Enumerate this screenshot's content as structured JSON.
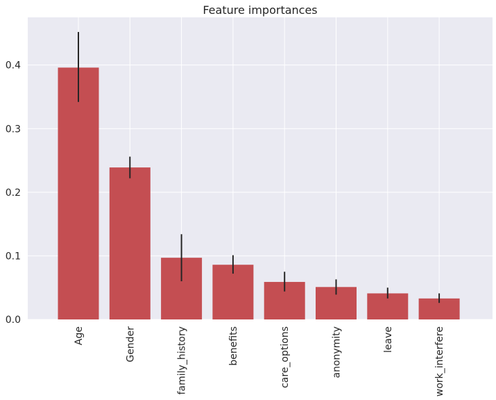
{
  "chart_data": {
    "type": "bar",
    "title": "Feature importances",
    "xlabel": "",
    "ylabel": "",
    "categories": [
      "Age",
      "Gender",
      "family_history",
      "benefits",
      "care_options",
      "anonymity",
      "leave",
      "work_interfere"
    ],
    "values": [
      0.396,
      0.239,
      0.097,
      0.086,
      0.059,
      0.051,
      0.041,
      0.033
    ],
    "errors_low": [
      0.342,
      0.222,
      0.06,
      0.072,
      0.044,
      0.039,
      0.033,
      0.026
    ],
    "errors_high": [
      0.452,
      0.256,
      0.134,
      0.101,
      0.075,
      0.063,
      0.05,
      0.041
    ],
    "ylim": [
      0,
      0.475
    ],
    "yticks": [
      0.0,
      0.1,
      0.2,
      0.3,
      0.4
    ],
    "ytick_labels": [
      "0.0",
      "0.1",
      "0.2",
      "0.3",
      "0.4"
    ],
    "grid": true,
    "colors": {
      "bar": "#c44e52",
      "error": "#262626",
      "plot_bg": "#eaeaf2",
      "grid": "#ffffff",
      "text": "#262626"
    }
  }
}
